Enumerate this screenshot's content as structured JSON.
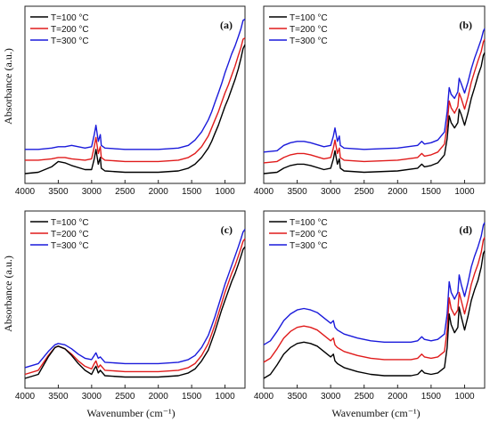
{
  "figure": {
    "ylabel": "Absorbance (a.u.)",
    "xlabel": "Wavenumber (cm⁻¹)"
  },
  "colors": {
    "T100": "#000000",
    "T200": "#e01b1b",
    "T300": "#1a1adb"
  },
  "chart_data": [
    {
      "type": "line",
      "panel_label": "(a)",
      "x_ticks": [
        "4000",
        "3500",
        "3000",
        "2500",
        "2000",
        "1500",
        "1000"
      ],
      "xlim": [
        4000,
        700
      ],
      "legend": "top-left",
      "grid": false,
      "series": [
        {
          "name": "T=100 °C",
          "x": [
            4000,
            3800,
            3600,
            3500,
            3400,
            3300,
            3100,
            3000,
            2960,
            2935,
            2900,
            2870,
            2855,
            2800,
            2500,
            2000,
            1700,
            1550,
            1450,
            1350,
            1250,
            1200,
            1150,
            1100,
            1050,
            1000,
            950,
            900,
            850,
            800,
            760,
            730,
            700
          ],
          "y": [
            0.02,
            0.03,
            0.07,
            0.11,
            0.1,
            0.08,
            0.05,
            0.05,
            0.13,
            0.2,
            0.09,
            0.14,
            0.06,
            0.04,
            0.03,
            0.03,
            0.04,
            0.06,
            0.09,
            0.14,
            0.21,
            0.26,
            0.32,
            0.38,
            0.45,
            0.52,
            0.58,
            0.65,
            0.72,
            0.8,
            0.88,
            0.95,
            0.98
          ]
        },
        {
          "name": "T=200 °C",
          "x": [
            4000,
            3800,
            3600,
            3500,
            3400,
            3300,
            3100,
            3000,
            2960,
            2935,
            2900,
            2870,
            2855,
            2800,
            2500,
            2000,
            1700,
            1550,
            1450,
            1350,
            1250,
            1200,
            1150,
            1100,
            1050,
            1000,
            950,
            900,
            850,
            800,
            760,
            730,
            700
          ],
          "y": [
            0.12,
            0.12,
            0.13,
            0.14,
            0.14,
            0.13,
            0.12,
            0.13,
            0.22,
            0.29,
            0.17,
            0.22,
            0.14,
            0.12,
            0.11,
            0.11,
            0.12,
            0.14,
            0.17,
            0.22,
            0.3,
            0.36,
            0.42,
            0.48,
            0.55,
            0.62,
            0.68,
            0.75,
            0.82,
            0.9,
            0.96,
            1.02,
            1.03
          ]
        },
        {
          "name": "T=300 °C",
          "x": [
            4000,
            3800,
            3600,
            3500,
            3400,
            3300,
            3100,
            3000,
            2960,
            2935,
            2900,
            2870,
            2855,
            2800,
            2500,
            2000,
            1700,
            1550,
            1450,
            1350,
            1250,
            1200,
            1150,
            1100,
            1050,
            1000,
            950,
            900,
            850,
            800,
            760,
            730,
            700
          ],
          "y": [
            0.2,
            0.2,
            0.21,
            0.22,
            0.22,
            0.23,
            0.21,
            0.22,
            0.31,
            0.38,
            0.26,
            0.31,
            0.23,
            0.21,
            0.2,
            0.2,
            0.21,
            0.23,
            0.27,
            0.33,
            0.42,
            0.48,
            0.55,
            0.62,
            0.69,
            0.77,
            0.84,
            0.91,
            0.97,
            1.04,
            1.1,
            1.16,
            1.17
          ]
        }
      ]
    },
    {
      "type": "line",
      "panel_label": "(b)",
      "x_ticks": [
        "4000",
        "3500",
        "3000",
        "2500",
        "2000",
        "1500",
        "1000"
      ],
      "xlim": [
        4000,
        700
      ],
      "legend": "top-left",
      "grid": false,
      "series": [
        {
          "name": "T=100 °C",
          "x": [
            4000,
            3800,
            3700,
            3600,
            3500,
            3400,
            3300,
            3100,
            3000,
            2960,
            2935,
            2900,
            2870,
            2855,
            2800,
            2500,
            2000,
            1700,
            1640,
            1600,
            1500,
            1400,
            1300,
            1260,
            1230,
            1200,
            1150,
            1100,
            1080,
            1050,
            1000,
            950,
            900,
            850,
            800,
            750,
            720,
            700
          ],
          "y": [
            0.02,
            0.03,
            0.06,
            0.08,
            0.09,
            0.09,
            0.08,
            0.05,
            0.06,
            0.13,
            0.19,
            0.09,
            0.13,
            0.06,
            0.04,
            0.03,
            0.04,
            0.06,
            0.09,
            0.07,
            0.08,
            0.1,
            0.16,
            0.28,
            0.45,
            0.4,
            0.36,
            0.4,
            0.5,
            0.46,
            0.38,
            0.47,
            0.58,
            0.66,
            0.75,
            0.82,
            0.9,
            0.92
          ]
        },
        {
          "name": "T=200 °C",
          "x": [
            4000,
            3800,
            3700,
            3600,
            3500,
            3400,
            3300,
            3100,
            3000,
            2960,
            2935,
            2900,
            2870,
            2855,
            2800,
            2500,
            2000,
            1700,
            1640,
            1600,
            1500,
            1400,
            1300,
            1260,
            1230,
            1200,
            1150,
            1100,
            1080,
            1050,
            1000,
            950,
            900,
            850,
            800,
            750,
            720,
            700
          ],
          "y": [
            0.1,
            0.11,
            0.14,
            0.16,
            0.17,
            0.17,
            0.16,
            0.13,
            0.14,
            0.21,
            0.27,
            0.17,
            0.21,
            0.14,
            0.12,
            0.11,
            0.12,
            0.14,
            0.17,
            0.15,
            0.16,
            0.18,
            0.24,
            0.38,
            0.56,
            0.51,
            0.47,
            0.52,
            0.62,
            0.58,
            0.5,
            0.59,
            0.7,
            0.78,
            0.86,
            0.93,
            1.0,
            1.02
          ]
        },
        {
          "name": "T=300 °C",
          "x": [
            4000,
            3800,
            3700,
            3600,
            3500,
            3400,
            3300,
            3100,
            3000,
            2960,
            2935,
            2900,
            2870,
            2855,
            2800,
            2500,
            2000,
            1700,
            1640,
            1600,
            1500,
            1400,
            1300,
            1260,
            1230,
            1200,
            1150,
            1100,
            1080,
            1050,
            1000,
            950,
            900,
            850,
            800,
            750,
            720,
            700
          ],
          "y": [
            0.18,
            0.19,
            0.23,
            0.25,
            0.26,
            0.26,
            0.25,
            0.22,
            0.23,
            0.3,
            0.36,
            0.26,
            0.3,
            0.23,
            0.21,
            0.2,
            0.21,
            0.23,
            0.26,
            0.24,
            0.25,
            0.27,
            0.33,
            0.48,
            0.66,
            0.61,
            0.58,
            0.63,
            0.73,
            0.69,
            0.62,
            0.7,
            0.8,
            0.88,
            0.95,
            1.02,
            1.08,
            1.1
          ]
        }
      ]
    },
    {
      "type": "line",
      "panel_label": "(c)",
      "x_ticks": [
        "4000",
        "3500",
        "3000",
        "2500",
        "2000",
        "1500",
        "1000"
      ],
      "xlim": [
        4000,
        700
      ],
      "legend": "top-left",
      "grid": false,
      "series": [
        {
          "name": "T=100 °C",
          "x": [
            4000,
            3800,
            3650,
            3550,
            3500,
            3400,
            3300,
            3200,
            3100,
            3000,
            2960,
            2935,
            2900,
            2870,
            2800,
            2500,
            2000,
            1700,
            1550,
            1450,
            1350,
            1250,
            1200,
            1150,
            1100,
            1050,
            1000,
            950,
            900,
            850,
            800,
            760,
            730,
            700
          ],
          "y": [
            0.02,
            0.05,
            0.18,
            0.25,
            0.26,
            0.24,
            0.19,
            0.13,
            0.08,
            0.05,
            0.09,
            0.11,
            0.06,
            0.08,
            0.04,
            0.03,
            0.03,
            0.04,
            0.06,
            0.09,
            0.15,
            0.23,
            0.3,
            0.37,
            0.45,
            0.53,
            0.6,
            0.67,
            0.74,
            0.8,
            0.87,
            0.93,
            0.98,
            1.0
          ]
        },
        {
          "name": "T=200 °C",
          "x": [
            4000,
            3800,
            3650,
            3550,
            3500,
            3400,
            3300,
            3200,
            3100,
            3000,
            2960,
            2935,
            2900,
            2870,
            2800,
            2500,
            2000,
            1700,
            1550,
            1450,
            1350,
            1250,
            1200,
            1150,
            1100,
            1050,
            1000,
            950,
            900,
            850,
            800,
            760,
            730,
            700
          ],
          "y": [
            0.05,
            0.08,
            0.19,
            0.25,
            0.26,
            0.24,
            0.2,
            0.15,
            0.11,
            0.09,
            0.13,
            0.15,
            0.1,
            0.12,
            0.08,
            0.07,
            0.07,
            0.08,
            0.1,
            0.13,
            0.19,
            0.28,
            0.35,
            0.42,
            0.5,
            0.58,
            0.66,
            0.73,
            0.8,
            0.86,
            0.93,
            0.99,
            1.04,
            1.06
          ]
        },
        {
          "name": "T=300 °C",
          "x": [
            4000,
            3800,
            3650,
            3550,
            3500,
            3400,
            3300,
            3200,
            3100,
            3000,
            2960,
            2935,
            2900,
            2870,
            2800,
            2500,
            2000,
            1700,
            1550,
            1450,
            1350,
            1250,
            1200,
            1150,
            1100,
            1050,
            1000,
            950,
            900,
            850,
            800,
            760,
            730,
            700
          ],
          "y": [
            0.1,
            0.13,
            0.22,
            0.27,
            0.28,
            0.27,
            0.24,
            0.2,
            0.17,
            0.16,
            0.19,
            0.21,
            0.17,
            0.18,
            0.14,
            0.13,
            0.13,
            0.14,
            0.16,
            0.19,
            0.25,
            0.34,
            0.41,
            0.48,
            0.56,
            0.64,
            0.72,
            0.79,
            0.86,
            0.93,
            1.0,
            1.06,
            1.11,
            1.13
          ]
        }
      ]
    },
    {
      "type": "line",
      "panel_label": "(d)",
      "x_ticks": [
        "4000",
        "3500",
        "3000",
        "2500",
        "2000",
        "1500",
        "1000"
      ],
      "xlim": [
        4000,
        700
      ],
      "legend": "top-left",
      "grid": false,
      "series": [
        {
          "name": "T=100 °C",
          "x": [
            4000,
            3900,
            3800,
            3700,
            3600,
            3500,
            3400,
            3300,
            3200,
            3100,
            3000,
            2960,
            2935,
            2900,
            2800,
            2600,
            2400,
            2200,
            2000,
            1800,
            1700,
            1640,
            1600,
            1500,
            1400,
            1300,
            1260,
            1230,
            1200,
            1150,
            1100,
            1080,
            1050,
            1000,
            950,
            900,
            850,
            800,
            750,
            720,
            700
          ],
          "y": [
            0.02,
            0.05,
            0.12,
            0.2,
            0.25,
            0.28,
            0.29,
            0.28,
            0.26,
            0.22,
            0.18,
            0.2,
            0.15,
            0.13,
            0.1,
            0.07,
            0.05,
            0.04,
            0.04,
            0.04,
            0.05,
            0.08,
            0.06,
            0.05,
            0.06,
            0.1,
            0.25,
            0.5,
            0.42,
            0.36,
            0.4,
            0.55,
            0.48,
            0.38,
            0.48,
            0.6,
            0.68,
            0.75,
            0.85,
            0.95,
            0.97
          ]
        },
        {
          "name": "T=200 °C",
          "x": [
            4000,
            3900,
            3800,
            3700,
            3600,
            3500,
            3400,
            3300,
            3200,
            3100,
            3000,
            2960,
            2935,
            2900,
            2800,
            2600,
            2400,
            2200,
            2000,
            1800,
            1700,
            1640,
            1600,
            1500,
            1400,
            1300,
            1260,
            1230,
            1200,
            1150,
            1100,
            1080,
            1050,
            1000,
            950,
            900,
            850,
            800,
            750,
            720,
            700
          ],
          "y": [
            0.14,
            0.17,
            0.24,
            0.32,
            0.37,
            0.4,
            0.41,
            0.4,
            0.38,
            0.34,
            0.3,
            0.32,
            0.27,
            0.25,
            0.22,
            0.19,
            0.17,
            0.16,
            0.16,
            0.16,
            0.17,
            0.2,
            0.18,
            0.17,
            0.18,
            0.22,
            0.38,
            0.62,
            0.54,
            0.49,
            0.53,
            0.66,
            0.6,
            0.5,
            0.6,
            0.72,
            0.8,
            0.87,
            0.96,
            1.05,
            1.07
          ]
        },
        {
          "name": "T=300 °C",
          "x": [
            4000,
            3900,
            3800,
            3700,
            3600,
            3500,
            3400,
            3300,
            3200,
            3100,
            3000,
            2960,
            2935,
            2900,
            2800,
            2600,
            2400,
            2200,
            2000,
            1800,
            1700,
            1640,
            1600,
            1500,
            1400,
            1300,
            1260,
            1230,
            1200,
            1150,
            1100,
            1080,
            1050,
            1000,
            950,
            900,
            850,
            800,
            750,
            720,
            700
          ],
          "y": [
            0.27,
            0.3,
            0.37,
            0.45,
            0.5,
            0.53,
            0.54,
            0.53,
            0.51,
            0.47,
            0.43,
            0.45,
            0.4,
            0.38,
            0.35,
            0.32,
            0.3,
            0.29,
            0.29,
            0.29,
            0.3,
            0.33,
            0.31,
            0.3,
            0.31,
            0.35,
            0.5,
            0.74,
            0.66,
            0.61,
            0.66,
            0.79,
            0.72,
            0.63,
            0.73,
            0.85,
            0.93,
            1.0,
            1.08,
            1.16,
            1.18
          ]
        }
      ]
    }
  ]
}
